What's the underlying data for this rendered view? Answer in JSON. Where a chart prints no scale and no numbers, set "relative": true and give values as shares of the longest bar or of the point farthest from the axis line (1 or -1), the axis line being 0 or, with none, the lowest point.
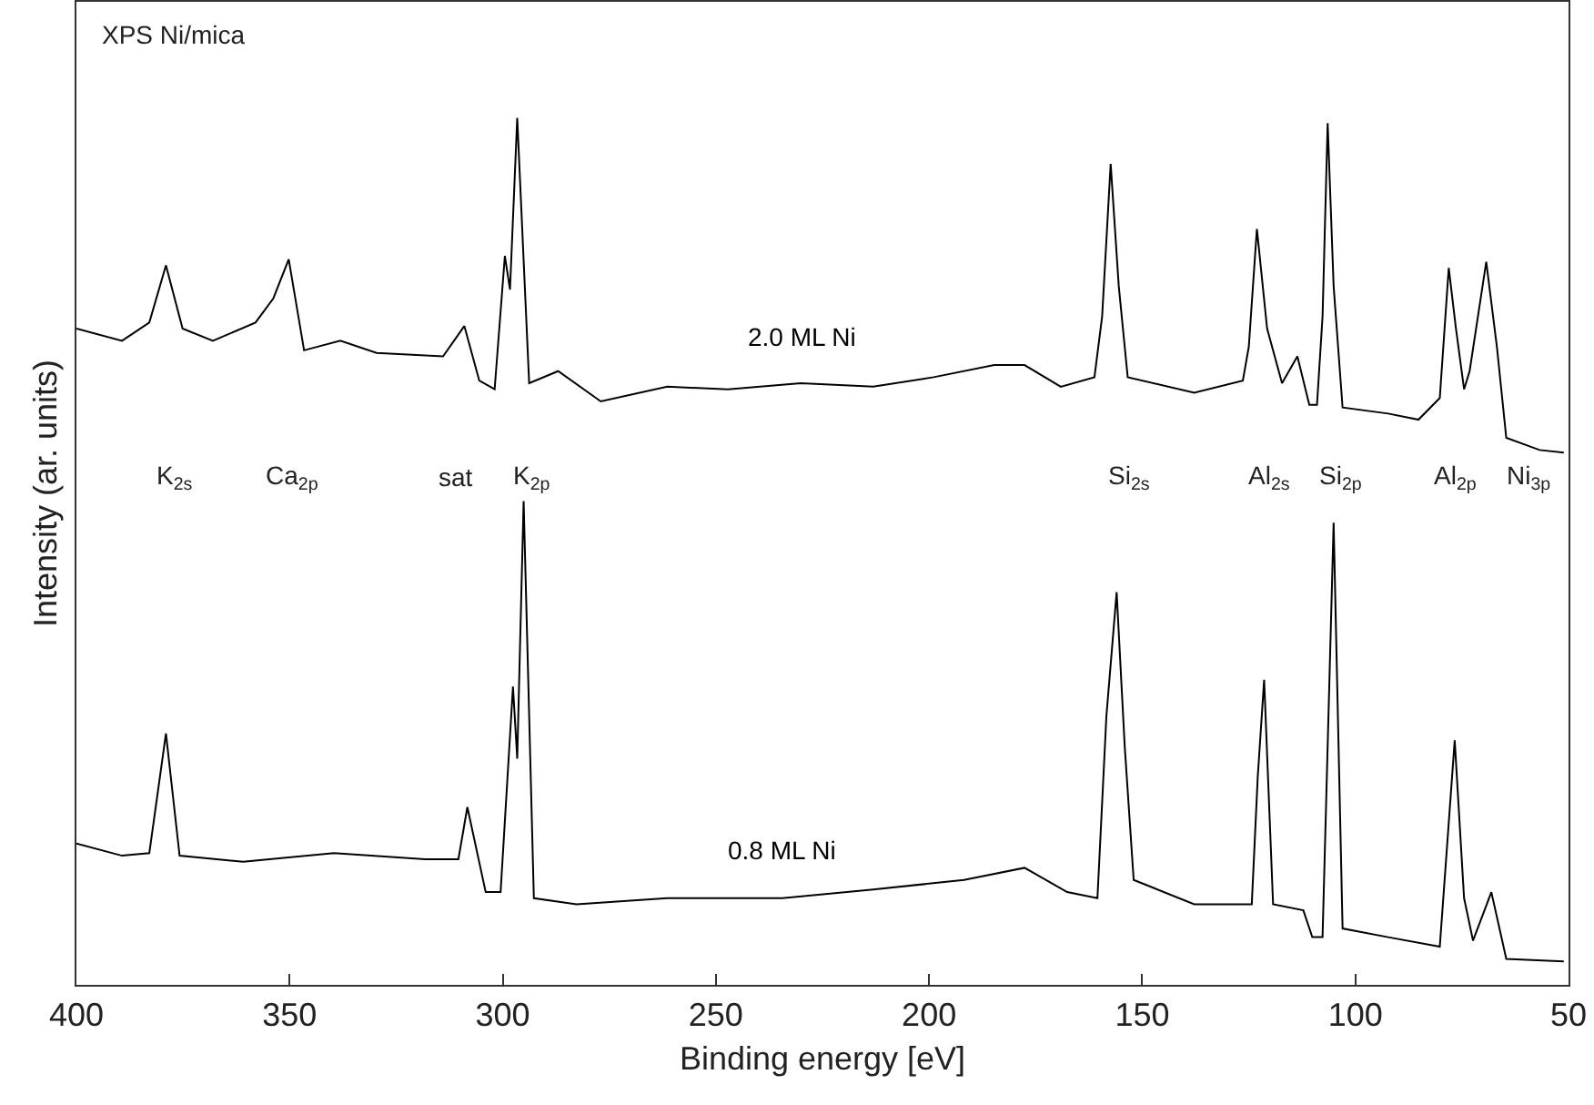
{
  "chart_data": {
    "type": "line",
    "title": "XPS Ni/mica",
    "xlabel": "Binding energy [eV]",
    "ylabel": "Intensity (ar. units)",
    "relative": true,
    "xlim": [
      400,
      50
    ],
    "xticks": [
      400,
      350,
      300,
      250,
      200,
      150,
      100,
      50
    ],
    "grid": false,
    "legend": false,
    "marker": "none",
    "line_style": "solid",
    "series": [
      {
        "name": "2.0 ML Ni",
        "color": "#000000",
        "x": [
          400,
          389.3,
          382.9,
          379,
          375.1,
          368,
          358,
          353.8,
          350.2,
          346.6,
          338.1,
          329.6,
          314,
          309,
          305.5,
          301.9,
          299.5,
          298.3,
          296.6,
          293.8,
          287,
          277,
          261.4,
          247.2,
          230.1,
          213.1,
          198.9,
          184.7,
          177.6,
          169.1,
          161.2,
          159.4,
          157.4,
          155.5,
          153.4,
          137.8,
          126.4,
          125,
          123.1,
          120.7,
          117.2,
          113.6,
          110.8,
          109,
          107.7,
          106.5,
          105.1,
          103,
          92.3,
          85.2,
          80.2,
          78.1,
          76.4,
          74.5,
          73.2,
          69.3,
          66.8,
          64.6,
          56.8,
          51.1
        ],
        "values": [
          0.757,
          0.743,
          0.764,
          0.83,
          0.757,
          0.743,
          0.764,
          0.792,
          0.837,
          0.732,
          0.743,
          0.729,
          0.725,
          0.76,
          0.697,
          0.687,
          0.841,
          0.802,
          1,
          0.694,
          0.708,
          0.673,
          0.69,
          0.687,
          0.694,
          0.69,
          0.701,
          0.715,
          0.715,
          0.69,
          0.701,
          0.771,
          0.947,
          0.806,
          0.701,
          0.683,
          0.697,
          0.736,
          0.872,
          0.757,
          0.694,
          0.725,
          0.669,
          0.669,
          0.771,
          0.994,
          0.806,
          0.666,
          0.659,
          0.652,
          0.677,
          0.827,
          0.757,
          0.687,
          0.708,
          0.834,
          0.736,
          0.631,
          0.617,
          0.614
        ]
      },
      {
        "name": "0.8 ML Ni",
        "color": "#000000",
        "x": [
          400,
          389.3,
          382.9,
          379,
          375.8,
          360.9,
          339.6,
          318.2,
          310.4,
          308.3,
          304,
          300.5,
          297.6,
          296.6,
          295.1,
          292.7,
          282.7,
          261.4,
          234.4,
          213.1,
          191.8,
          177.6,
          167.6,
          160.5,
          158.4,
          156,
          154.1,
          152,
          137.8,
          124.3,
          122.9,
          121.4,
          119.3,
          112.2,
          110.1,
          107.7,
          105.1,
          103,
          92.3,
          80.2,
          76.7,
          74.5,
          72.4,
          68.1,
          64.6,
          51.1
        ],
        "values": [
          0.163,
          0.149,
          0.152,
          0.29,
          0.149,
          0.142,
          0.152,
          0.145,
          0.145,
          0.205,
          0.107,
          0.107,
          0.344,
          0.261,
          0.558,
          0.1,
          0.093,
          0.1,
          0.1,
          0.11,
          0.121,
          0.135,
          0.107,
          0.1,
          0.31,
          0.453,
          0.275,
          0.121,
          0.093,
          0.093,
          0.24,
          0.352,
          0.093,
          0.086,
          0.055,
          0.055,
          0.533,
          0.065,
          0.055,
          0.044,
          0.282,
          0.1,
          0.051,
          0.107,
          0.03,
          0.027
        ]
      }
    ],
    "annotations": [
      "K$_{2s}$",
      "Ca$_{2p}$",
      "sat",
      "K$_{2p}$",
      "Si$_{2s}$",
      "Al$_{2s}$",
      "Si$_{2p}$",
      "Al$_{2p}$",
      "Ni$_{3p}$"
    ]
  }
}
